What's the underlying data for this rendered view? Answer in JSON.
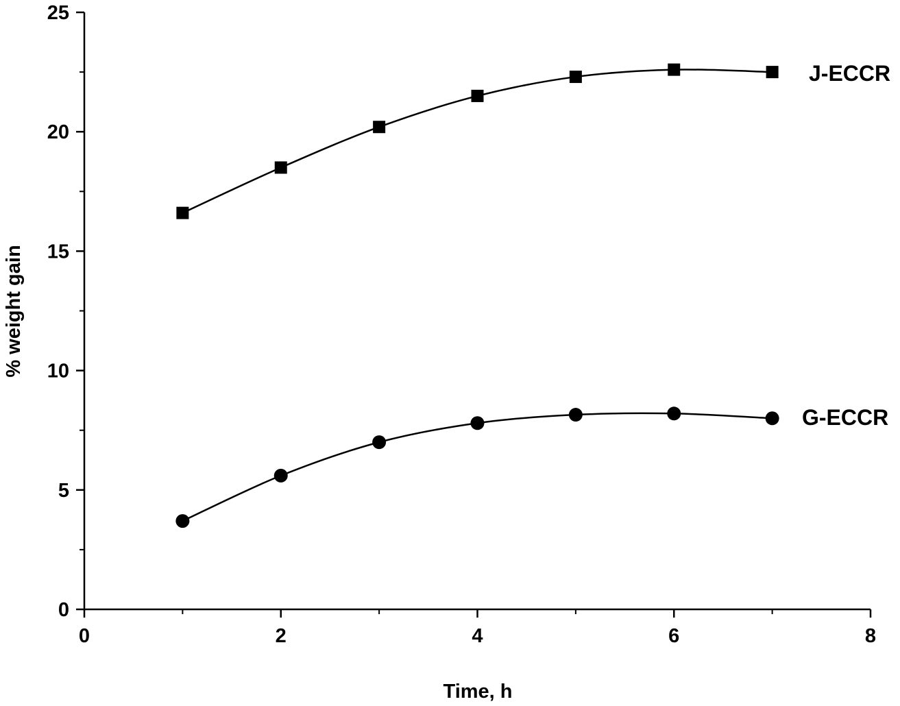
{
  "chart_data": {
    "type": "line",
    "title": "",
    "xlabel": "Time, h",
    "ylabel": "% weight gain",
    "xlim": [
      0,
      8
    ],
    "ylim": [
      0,
      25
    ],
    "x_ticks": [
      0,
      2,
      4,
      6,
      8
    ],
    "y_ticks": [
      0,
      5,
      10,
      15,
      20,
      25
    ],
    "x_tick_labels": [
      "0",
      "2",
      "4",
      "6",
      "8"
    ],
    "y_tick_labels": [
      "0",
      "5",
      "10",
      "15",
      "20",
      "25"
    ],
    "grid": false,
    "legend": "inline labels at right end of each series",
    "series": [
      {
        "name": "J-ECCR",
        "marker": "square",
        "x": [
          1,
          2,
          3,
          4,
          5,
          6,
          7
        ],
        "values": [
          16.6,
          18.5,
          20.2,
          21.5,
          22.3,
          22.6,
          22.5
        ]
      },
      {
        "name": "G-ECCR",
        "marker": "circle",
        "x": [
          1,
          2,
          3,
          4,
          5,
          6,
          7
        ],
        "values": [
          3.7,
          5.6,
          7.0,
          7.8,
          8.15,
          8.2,
          8.0
        ]
      }
    ],
    "colors": {
      "line": "#000000",
      "marker": "#000000",
      "axis": "#000000"
    }
  }
}
